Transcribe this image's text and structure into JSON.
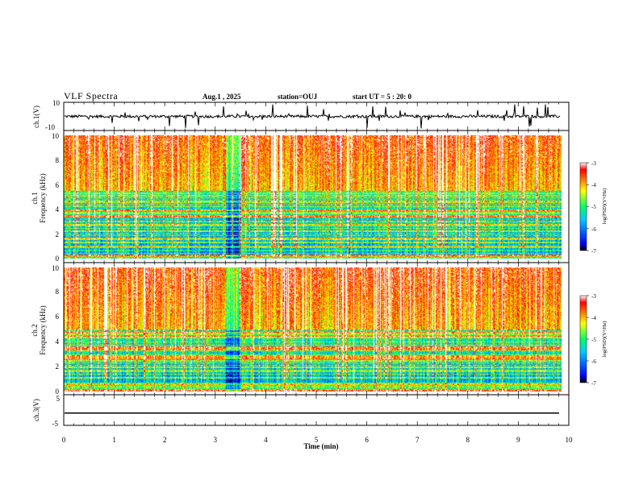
{
  "header": {
    "title": "VLF Spectra",
    "date": "Aug.1 , 2025",
    "station": "station=OUJ",
    "start_time": "start UT = 5 : 20: 0"
  },
  "colors": {
    "waveform": "#000000",
    "colormap": [
      "#000000",
      "#0000ff",
      "#00c8ff",
      "#00ff64",
      "#ffff00",
      "#ff7f00",
      "#ff0000",
      "#ffffff"
    ]
  },
  "chart_data": [
    {
      "type": "line",
      "name": "ch1-waveform",
      "ylabel": "ch.1(V)",
      "ylim": [
        -10,
        10
      ],
      "yticks": [
        "10",
        "-10"
      ],
      "xlim": [
        0,
        10
      ],
      "baseline": 0,
      "noise_amplitude": 2,
      "spike_amplitude": 8
    },
    {
      "type": "heatmap",
      "name": "ch1-spectrogram",
      "ylabel": "ch.1\nFrequency (kHz)",
      "ylabel_lines": [
        "ch.1",
        "Frequency (kHz)"
      ],
      "ylim": [
        0,
        10
      ],
      "yticks": [
        "0",
        "2",
        "4",
        "6",
        "8",
        "10"
      ],
      "xlim": [
        0,
        9.85
      ],
      "colorbar": {
        "label": "log(PSD)(V²/Hz)",
        "range": [
          -7,
          -3
        ],
        "ticks": [
          "-3",
          "-4",
          "-5",
          "-6",
          "-7"
        ]
      },
      "low_level_band_khz": [
        0,
        5.5
      ],
      "quiet_interval_min": [
        3.2,
        3.5
      ]
    },
    {
      "type": "heatmap",
      "name": "ch2-spectrogram",
      "ylabel": "ch.2\nFrequency (kHz)",
      "ylabel_lines": [
        "ch.2",
        "Frequency (kHz)"
      ],
      "ylim": [
        0,
        10
      ],
      "yticks": [
        "0",
        "2",
        "4",
        "6",
        "8",
        "10"
      ],
      "xlim": [
        0,
        9.85
      ],
      "colorbar": {
        "label": "log(PSD)(V²/Hz)",
        "range": [
          -7,
          -3
        ],
        "ticks": [
          "-3",
          "-4",
          "-5",
          "-6",
          "-7"
        ]
      },
      "low_level_band_khz": [
        0,
        5.0
      ],
      "quiet_interval_min": [
        3.2,
        3.5
      ]
    },
    {
      "type": "line",
      "name": "ch3-waveform",
      "ylabel": "ch.3(V)",
      "ylim": [
        -5,
        5
      ],
      "yticks": [
        "5",
        "-5"
      ],
      "xlim": [
        0,
        10
      ],
      "baseline": -1
    }
  ],
  "xaxis": {
    "label": "Time (min)",
    "range": [
      0,
      10
    ],
    "ticks": [
      "0",
      "1",
      "2",
      "3",
      "4",
      "5",
      "6",
      "7",
      "8",
      "9",
      "10"
    ]
  }
}
